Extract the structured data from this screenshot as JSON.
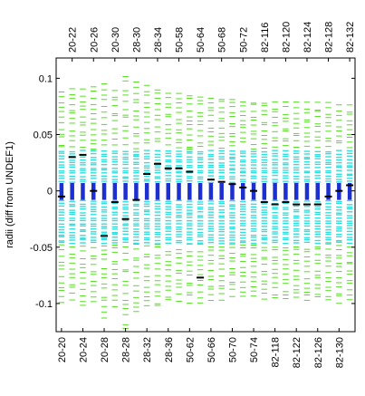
{
  "chart_data": {
    "type": "box-strip",
    "ylabel": "radii (diff from UNDEF1)",
    "ylim": [
      -0.125,
      0.118
    ],
    "yticks": [
      0.1,
      0.05,
      0,
      -0.05,
      -0.1
    ],
    "ytick_labels": [
      "0.1",
      "0.05",
      "0",
      "-0.05",
      "-0.1"
    ],
    "bottom_tick_labels": [
      "20-20",
      "20-24",
      "20-28",
      "28-28",
      "28-32",
      "28-36",
      "50-62",
      "50-66",
      "50-70",
      "50-74",
      "82-118",
      "82-122",
      "82-126",
      "82-130"
    ],
    "top_tick_labels": [
      "20-22",
      "20-26",
      "20-30",
      "28-30",
      "28-34",
      "50-58",
      "50-64",
      "50-68",
      "50-72",
      "82-116",
      "82-120",
      "82-124",
      "82-128",
      "82-132"
    ],
    "categories": [
      "20-20",
      "20-22",
      "20-24",
      "20-26",
      "20-28",
      "20-30",
      "28-28",
      "28-30",
      "28-32",
      "28-34",
      "28-36",
      "50-58",
      "50-62",
      "50-64",
      "50-66",
      "50-68",
      "50-70",
      "50-72",
      "50-74",
      "82-116",
      "82-118",
      "82-120",
      "82-122",
      "82-124",
      "82-126",
      "82-128",
      "82-130",
      "82-132"
    ],
    "series_colors": {
      "outer_points": "#55dd22",
      "iqr_points": "#33dddd",
      "core_band": "#1c2fd0",
      "median": "#000000"
    },
    "median": [
      -0.005,
      0.03,
      0.032,
      0.0,
      -0.04,
      -0.01,
      -0.025,
      -0.008,
      0.015,
      0.024,
      0.02,
      0.02,
      0.017,
      -0.077,
      0.01,
      0.008,
      0.006,
      0.003,
      0.0,
      -0.01,
      -0.012,
      -0.01,
      -0.012,
      -0.012,
      -0.012,
      -0.005,
      0.0,
      0.005
    ],
    "core_range": [
      -0.008,
      0.007
    ],
    "iqr_range": [
      -0.047,
      0.037
    ],
    "outer_range": [
      [
        -0.1,
        0.09
      ],
      [
        -0.098,
        0.093
      ],
      [
        -0.103,
        0.093
      ],
      [
        -0.1,
        0.095
      ],
      [
        -0.115,
        0.098
      ],
      [
        -0.105,
        0.092
      ],
      [
        -0.125,
        0.105
      ],
      [
        -0.11,
        0.1
      ],
      [
        -0.105,
        0.097
      ],
      [
        -0.105,
        0.093
      ],
      [
        -0.1,
        0.09
      ],
      [
        -0.098,
        0.09
      ],
      [
        -0.1,
        0.088
      ],
      [
        -0.1,
        0.087
      ],
      [
        -0.098,
        0.086
      ],
      [
        -0.098,
        0.085
      ],
      [
        -0.095,
        0.085
      ],
      [
        -0.095,
        0.083
      ],
      [
        -0.095,
        0.082
      ],
      [
        -0.098,
        0.082
      ],
      [
        -0.097,
        0.08
      ],
      [
        -0.098,
        0.08
      ],
      [
        -0.097,
        0.08
      ],
      [
        -0.1,
        0.08
      ],
      [
        -0.097,
        0.08
      ],
      [
        -0.1,
        0.08
      ],
      [
        -0.1,
        0.078
      ],
      [
        -0.097,
        0.078
      ]
    ]
  }
}
